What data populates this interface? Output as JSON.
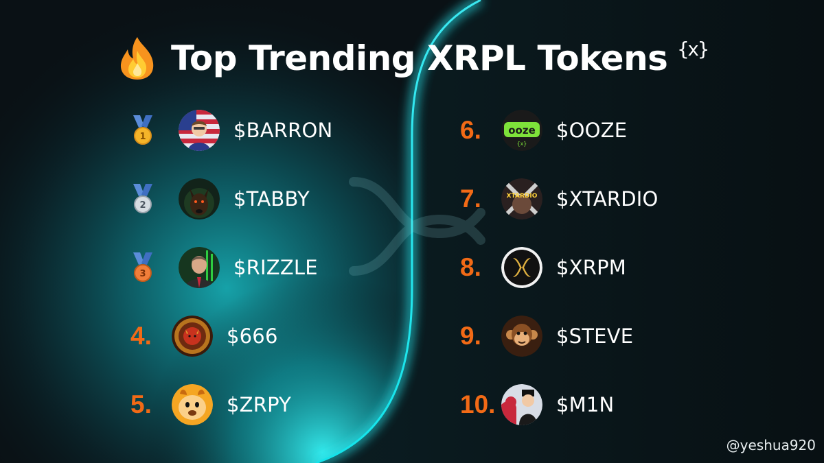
{
  "header": {
    "title": "Top Trending XRPL Tokens",
    "flame_icon": "fire-emoji",
    "logo_text": "{x}"
  },
  "watermark": {
    "text": "XRPL"
  },
  "tokens": [
    {
      "rank": "1",
      "ticker": "$BARRON",
      "medal": "gold"
    },
    {
      "rank": "2",
      "ticker": "$TABBY",
      "medal": "silver"
    },
    {
      "rank": "3",
      "ticker": "$RIZZLE",
      "medal": "bronze"
    },
    {
      "rank": "4.",
      "ticker": "$666"
    },
    {
      "rank": "5.",
      "ticker": "$ZRPY"
    },
    {
      "rank": "6.",
      "ticker": "$OOZE"
    },
    {
      "rank": "7.",
      "ticker": "$XTARDIO"
    },
    {
      "rank": "8.",
      "ticker": "$XRPM"
    },
    {
      "rank": "9.",
      "ticker": "$STEVE"
    },
    {
      "rank": "10.",
      "ticker": "$M1N"
    }
  ],
  "footer": {
    "handle": "@yeshua920"
  },
  "colors": {
    "background": "#0a1115",
    "glow": "#14d8e0",
    "rank_orange": "#f26a16",
    "text": "#ffffff"
  }
}
